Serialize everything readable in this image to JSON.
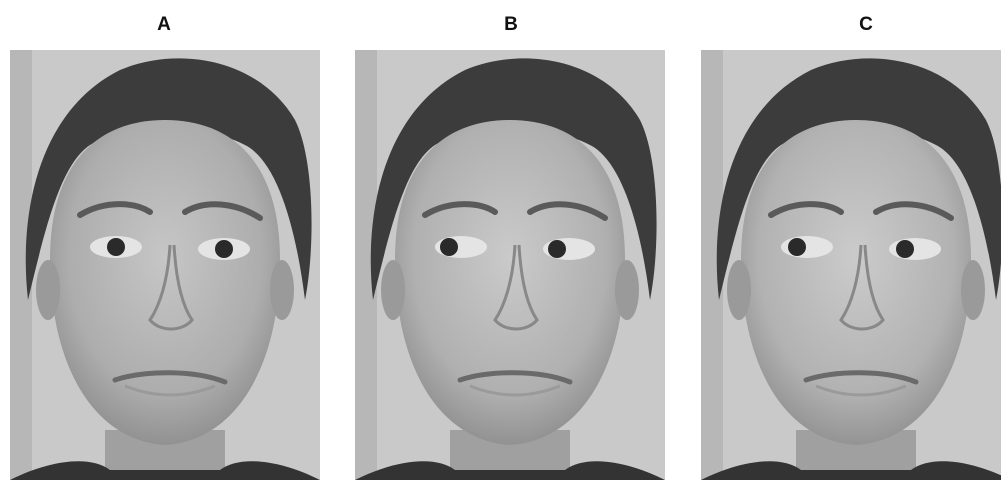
{
  "panels": [
    {
      "label": "A",
      "gaze": "direct",
      "head_turn": "none"
    },
    {
      "label": "B",
      "gaze": "averted-left",
      "head_turn": "slight"
    },
    {
      "label": "C",
      "gaze": "averted-left",
      "head_turn": "slight"
    }
  ],
  "colors": {
    "background": "#ffffff",
    "photo_backdrop": "#c9c9c9",
    "skin": "#b3b3b3",
    "hair": "#3c3c3c",
    "label_text": "#111111"
  }
}
